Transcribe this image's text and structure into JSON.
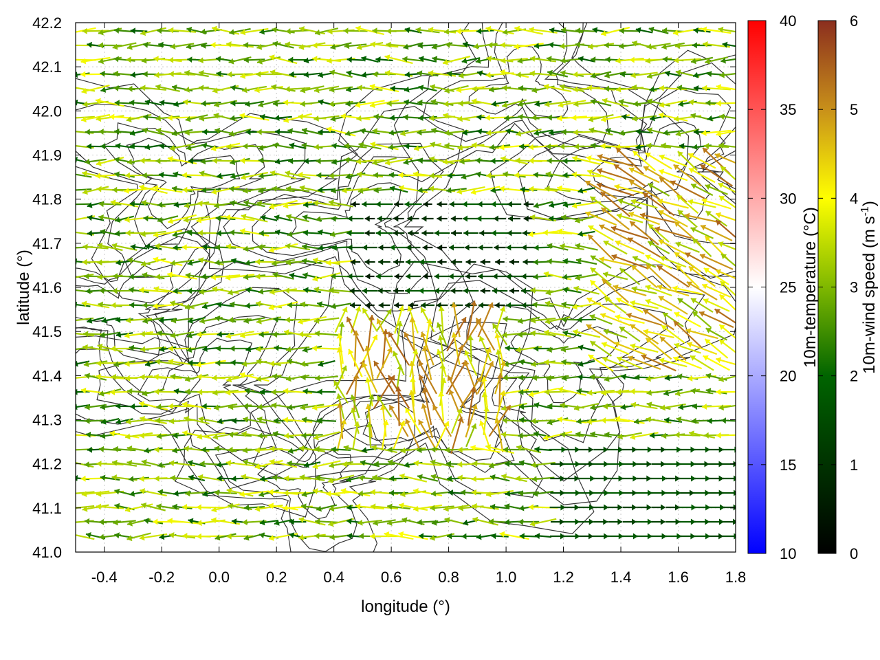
{
  "chart_data": {
    "type": "vector-field",
    "xlabel": "longitude (°)",
    "ylabel": "latitude (°)",
    "xlim": [
      -0.5,
      1.8
    ],
    "ylim": [
      41.0,
      42.2
    ],
    "xticks": [
      -0.4,
      -0.2,
      0.0,
      0.2,
      0.4,
      0.6,
      0.8,
      1.0,
      1.2,
      1.4,
      1.6,
      1.8
    ],
    "xtick_labels": [
      "-0.4",
      "-0.2",
      "0.0",
      "0.2",
      "0.4",
      "0.6",
      "0.8",
      "1.0",
      "1.2",
      "1.4",
      "1.6",
      "1.8"
    ],
    "yticks": [
      41.0,
      41.1,
      41.2,
      41.3,
      41.4,
      41.5,
      41.6,
      41.7,
      41.8,
      41.9,
      42.0,
      42.1,
      42.2
    ],
    "ytick_labels": [
      "41.0",
      "41.1",
      "41.2",
      "41.3",
      "41.4",
      "41.5",
      "41.6",
      "41.7",
      "41.8",
      "41.9",
      "42.0",
      "42.1",
      "42.2"
    ],
    "grid": true,
    "colorbars": [
      {
        "label": "10m-temperature (°C)",
        "range": [
          10,
          40
        ],
        "ticks": [
          10,
          15,
          20,
          25,
          30,
          35,
          40
        ],
        "tick_labels": [
          "10",
          "15",
          "20",
          "25",
          "30",
          "35",
          "40"
        ],
        "colors": [
          "#0000ff",
          "#ffffff",
          "#ff0000"
        ]
      },
      {
        "label_main": "10m-wind speed (m s",
        "label_sup": "-1",
        "label_end": ")",
        "range": [
          0,
          6
        ],
        "ticks": [
          0,
          1,
          2,
          3,
          4,
          5,
          6
        ],
        "tick_labels": [
          "0",
          "1",
          "2",
          "3",
          "4",
          "5",
          "6"
        ],
        "colors": [
          "#000000",
          "#006400",
          "#7fb800",
          "#ffff00",
          "#d4a017",
          "#b8741a",
          "#8b2e1e"
        ]
      }
    ]
  }
}
